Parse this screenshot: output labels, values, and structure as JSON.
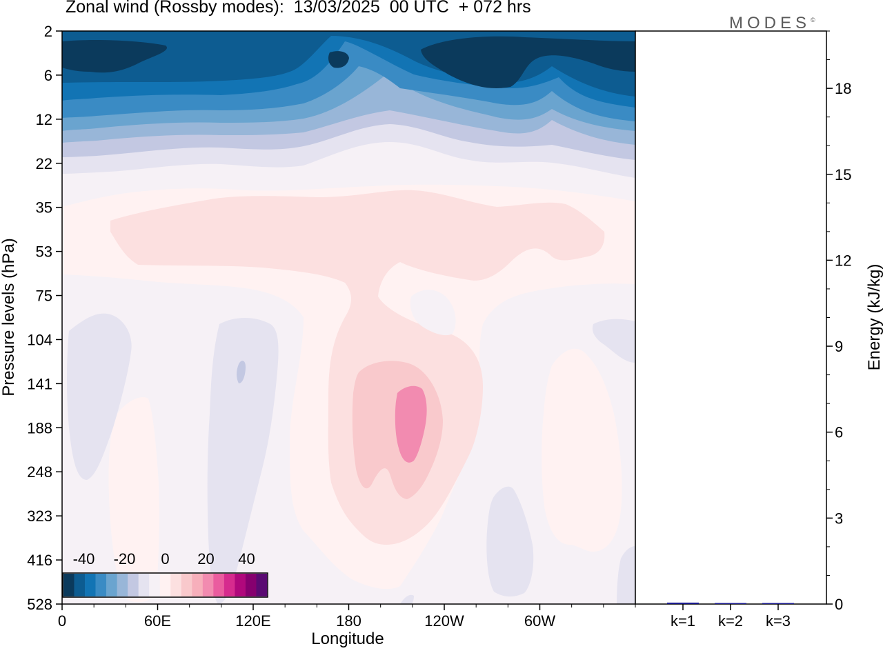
{
  "title": "Zonal wind (Rossby modes):  13/03/2025  00 UTC  + 072 hrs",
  "logo": "MODES",
  "logo_mark": "©",
  "chart_data": [
    {
      "type": "heatmap",
      "title": "Zonal wind (Rossby modes):  13/03/2025  00 UTC  + 072 hrs",
      "xlabel": "Longitude",
      "ylabel": "Pressure levels (hPa)",
      "x_ticks": [
        "0",
        "60E",
        "120E",
        "180",
        "120W",
        "60W"
      ],
      "x_range_deg_east": [
        0,
        360
      ],
      "x_tick_values_deg_east": [
        0,
        60,
        120,
        180,
        240,
        300
      ],
      "y_ticks": [
        "2",
        "6",
        "12",
        "22",
        "35",
        "53",
        "75",
        "104",
        "141",
        "188",
        "248",
        "323",
        "416",
        "528"
      ],
      "colorbar": {
        "ticks": [
          "-40",
          "-20",
          "0",
          "20",
          "40"
        ],
        "range": [
          -50,
          50
        ],
        "step": 5,
        "colors": [
          "#0b3a5c",
          "#0d5c91",
          "#1274b4",
          "#3a8bc4",
          "#6aa4cf",
          "#98b6d8",
          "#c3c8e2",
          "#e5e3f0",
          "#f6f1f6",
          "#fff2f2",
          "#fce0e0",
          "#f9c9cc",
          "#f7afbb",
          "#f28bb0",
          "#ea5c9f",
          "#d62b8e",
          "#b0087c",
          "#86006f",
          "#5a0a72"
        ]
      },
      "approx_values": {
        "note_levels": [
          "2",
          "6",
          "12",
          "22",
          "35",
          "53",
          "75",
          "104",
          "141",
          "188",
          "248",
          "323",
          "416",
          "528"
        ],
        "zonal_mean_profile": [
          -35,
          -35,
          -25,
          -3,
          3,
          3,
          1,
          0,
          0,
          0,
          0,
          0,
          0,
          0
        ],
        "max_positive": 15,
        "max_positive_location": {
          "longitude": "~205E",
          "level": "188"
        }
      }
    },
    {
      "type": "bar",
      "ylabel": "Energy (kJ/kg)",
      "categories": [
        "k=1",
        "k=2",
        "k=3"
      ],
      "values": [
        0.05,
        0.02,
        0.02
      ],
      "ylim": [
        0,
        20
      ],
      "y_ticks": [
        0,
        3,
        6,
        9,
        12,
        15,
        18
      ],
      "bar_color": "#1a1a8c"
    }
  ]
}
